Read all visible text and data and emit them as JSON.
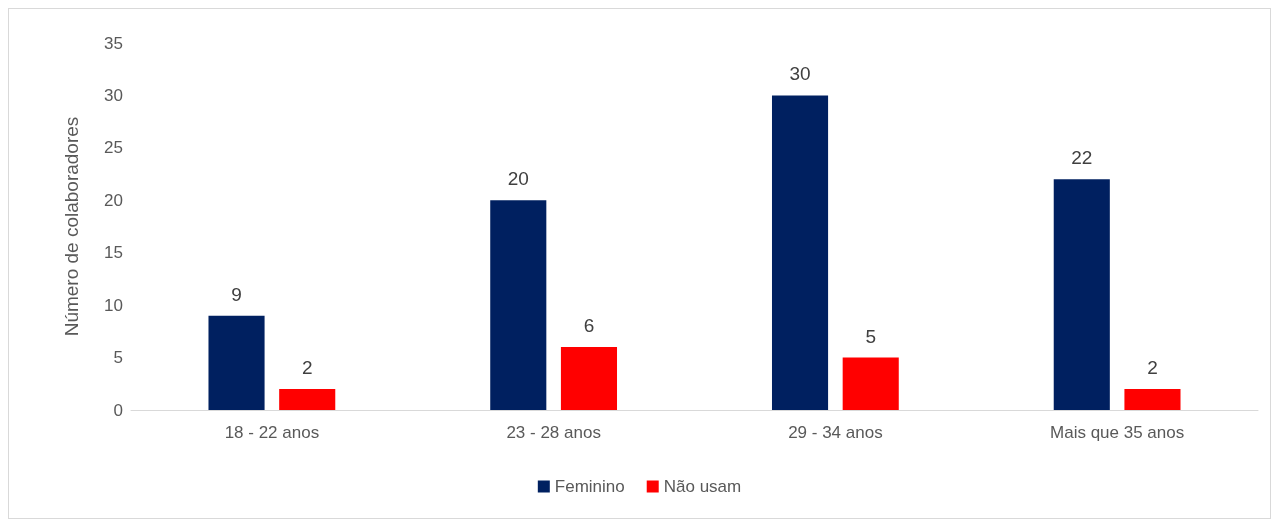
{
  "chart_data": {
    "type": "bar",
    "ylabel": "Número de colaboradores",
    "categories": [
      "18 - 22 anos",
      "23 - 28 anos",
      "29 - 34 anos",
      "Mais que 35 anos"
    ],
    "series": [
      {
        "name": "Feminino",
        "color": "#002060",
        "values": [
          9,
          20,
          30,
          22
        ]
      },
      {
        "name": "Não usam",
        "color": "#ff0000",
        "values": [
          2,
          6,
          5,
          2
        ]
      }
    ],
    "ylim": [
      0,
      35
    ],
    "yticks": [
      0,
      5,
      10,
      15,
      20,
      25,
      30,
      35
    ],
    "grid": false,
    "legend": "bottom",
    "data_labels": true
  }
}
